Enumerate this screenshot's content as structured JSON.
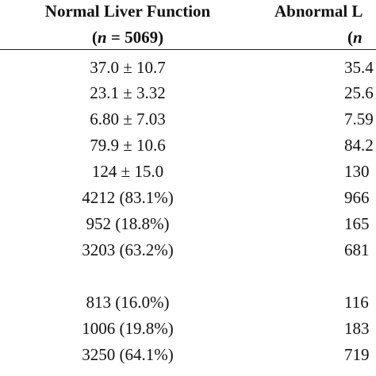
{
  "header": {
    "col1_title": "Normal Liver Function",
    "col1_n_open": "(",
    "col1_n_var": "n",
    "col1_n_rest": " = 5069)",
    "col2_title": "Abnormal L",
    "col2_n_open": "(",
    "col2_n_var": "n"
  },
  "rows": [
    {
      "normal": "37.0 ± 10.7",
      "abnormal": "35.4"
    },
    {
      "normal": "23.1 ± 3.32",
      "abnormal": "25.6"
    },
    {
      "normal": "6.80 ± 7.03",
      "abnormal": "7.59"
    },
    {
      "normal": "79.9 ± 10.6",
      "abnormal": "84.2"
    },
    {
      "normal": "124 ± 15.0",
      "abnormal": "130"
    },
    {
      "normal": "4212 (83.1%)",
      "abnormal": "966"
    },
    {
      "normal": "952 (18.8%)",
      "abnormal": "165"
    },
    {
      "normal": "3203 (63.2%)",
      "abnormal": "681"
    },
    {
      "normal": "813 (16.0%)",
      "abnormal": "116"
    },
    {
      "normal": "1006 (19.8%)",
      "abnormal": "183"
    },
    {
      "normal": "3250 (64.1%)",
      "abnormal": "719"
    }
  ]
}
